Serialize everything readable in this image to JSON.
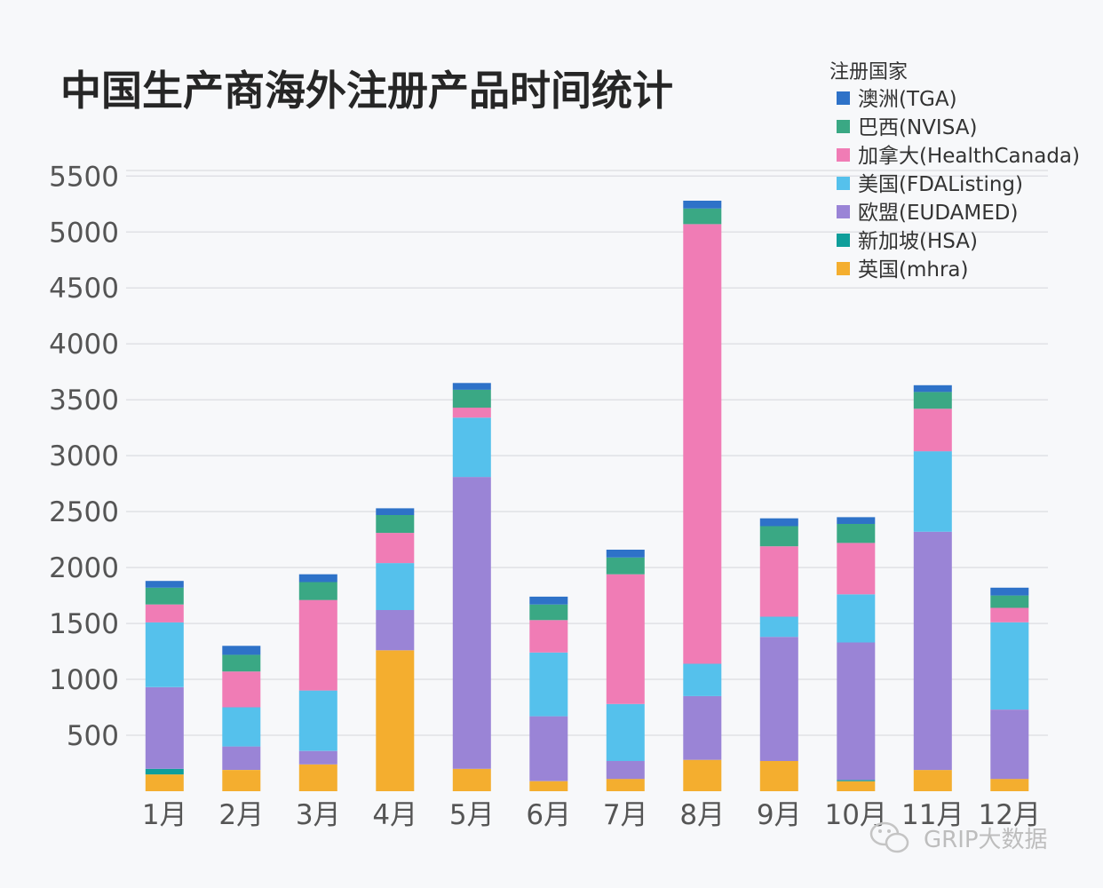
{
  "chart_data": {
    "type": "bar",
    "stacked": true,
    "title": "中国生产商海外注册产品时间统计",
    "categories": [
      "1月",
      "2月",
      "3月",
      "4月",
      "5月",
      "6月",
      "7月",
      "8月",
      "9月",
      "10月",
      "11月",
      "12月"
    ],
    "yticks": [
      500,
      1000,
      1500,
      2000,
      2500,
      3000,
      3500,
      4000,
      4500,
      5000,
      5500
    ],
    "ylim": [
      0,
      5550
    ],
    "grid": true,
    "legend_title": "注册国家",
    "legend_position": "top-right",
    "series": [
      {
        "name": "英国(mhra)",
        "color": "#f4ae2f",
        "values": [
          150,
          190,
          240,
          1260,
          200,
          90,
          110,
          280,
          270,
          90,
          190,
          110
        ]
      },
      {
        "name": "新加坡(HSA)",
        "color": "#0f9e9a",
        "values": [
          50,
          0,
          0,
          0,
          0,
          0,
          0,
          0,
          0,
          10,
          0,
          0
        ]
      },
      {
        "name": "欧盟(EUDAMED)",
        "color": "#9a84d6",
        "values": [
          730,
          210,
          120,
          360,
          2610,
          580,
          160,
          570,
          1110,
          1230,
          2130,
          620
        ]
      },
      {
        "name": "美国(FDAListing)",
        "color": "#55c1ec",
        "values": [
          580,
          350,
          540,
          420,
          530,
          570,
          510,
          290,
          180,
          430,
          720,
          780
        ]
      },
      {
        "name": "加拿大(HealthCanada)",
        "color": "#f07cb5",
        "values": [
          160,
          320,
          810,
          270,
          90,
          290,
          1160,
          3930,
          630,
          460,
          380,
          130
        ]
      },
      {
        "name": "巴西(NVISA)",
        "color": "#3aa884",
        "values": [
          150,
          150,
          160,
          160,
          160,
          140,
          150,
          140,
          180,
          170,
          150,
          110
        ]
      },
      {
        "name": "澳洲(TGA)",
        "color": "#2e72c8",
        "values": [
          60,
          80,
          70,
          60,
          60,
          70,
          70,
          70,
          70,
          60,
          60,
          70
        ]
      }
    ]
  },
  "legend_order": [
    6,
    5,
    4,
    3,
    2,
    1,
    0
  ],
  "watermark": "GRIP大数据"
}
